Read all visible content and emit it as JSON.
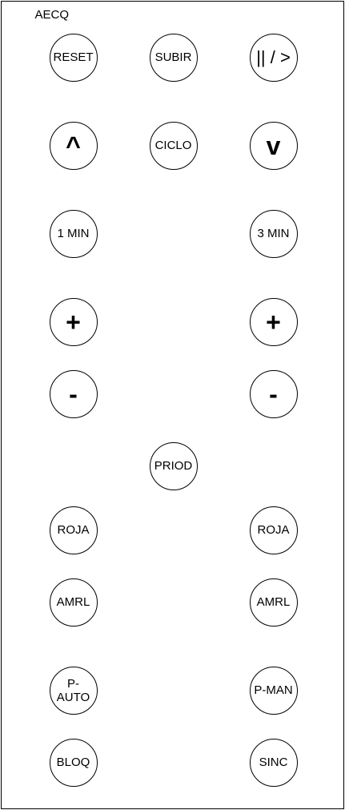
{
  "title": "AECQ",
  "buttons": {
    "reset": "RESET",
    "subir": "SUBIR",
    "pause_play": "|| / >",
    "up": "^",
    "ciclo": "CICLO",
    "down": "v",
    "one_min": "1 MIN",
    "three_min": "3 MIN",
    "plus_left": "+",
    "plus_right": "+",
    "minus_left": "-",
    "minus_right": "-",
    "priod": "PRIOD",
    "roja_left": "ROJA",
    "roja_right": "ROJA",
    "amrl_left": "AMRL",
    "amrl_right": "AMRL",
    "p_auto": "P-AUTO",
    "p_man": "P-MAN",
    "bloq": "BLOQ",
    "sinc": "SINC"
  }
}
